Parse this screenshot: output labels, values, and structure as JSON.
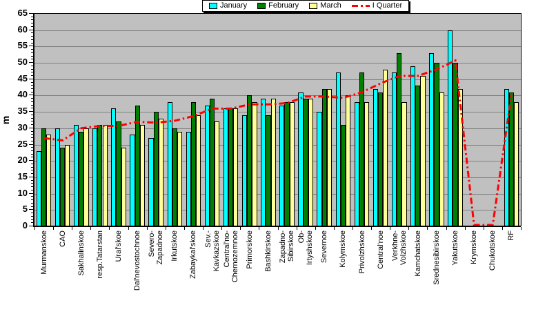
{
  "chart_data": {
    "type": "bar",
    "title": "",
    "ylabel": "m",
    "ylim": [
      0,
      65
    ],
    "ytick_step": 5,
    "yticks": [
      0,
      5,
      10,
      15,
      20,
      25,
      30,
      35,
      40,
      45,
      50,
      55,
      60,
      65
    ],
    "grid": true,
    "legend_position": "top-center",
    "plot_bg_color": "#C0C0C0",
    "grid_color": "#808080",
    "categories": [
      "Murmanskoe",
      "CAO",
      "Sakhalinskoe",
      "resp.Tatarstan",
      "Ural'skoe",
      "Dal'nevostochnoe",
      "Severo-\nZapadnoe",
      "Irkutskoe",
      "Zabaykal'skoe",
      "Sev.-\nKavkazskoe",
      "Central'no-\nChernozemnoe",
      "Primorskoe",
      "Bashkirskoe",
      "Zapadno-\nSibirskoe",
      "Ob-\nIrtyshskoe",
      "Severnoe",
      "Kolymskoe",
      "Privolzhskoe",
      "Central'noe",
      "Verkhne-\nVolzhskoe",
      "Kamchatskoe",
      "Srednesibirskoe",
      "Yakutskoe",
      "Krymskoe",
      "Chukotskoe",
      "RF"
    ],
    "series": [
      {
        "name": "January",
        "color": "#00FFFF",
        "values": [
          23,
          30,
          31,
          30,
          36,
          28,
          27,
          38,
          29,
          37,
          36,
          34,
          39,
          37,
          41,
          35,
          47,
          38,
          42,
          47,
          49,
          53,
          60,
          null,
          null,
          42
        ]
      },
      {
        "name": "February",
        "color": "#008000",
        "values": [
          30,
          24,
          29,
          31,
          32,
          37,
          35,
          30,
          38,
          39,
          36,
          40,
          34,
          38,
          39,
          42,
          31,
          47,
          41,
          53,
          43,
          50,
          50,
          null,
          null,
          41
        ]
      },
      {
        "name": "March",
        "color": "#FFFF99",
        "values": [
          28,
          25,
          30,
          31,
          24,
          31,
          33,
          29,
          34,
          32,
          36,
          38,
          39,
          38,
          39,
          42,
          40,
          38,
          48,
          38,
          46,
          41,
          42,
          null,
          null,
          38
        ]
      }
    ],
    "line_series": {
      "name": "I Quarter",
      "color": "#FF0000",
      "style": "dashed",
      "values": [
        27.0,
        26.3,
        30.0,
        30.7,
        30.7,
        32.0,
        31.7,
        32.3,
        33.7,
        36.0,
        36.0,
        37.3,
        37.3,
        37.7,
        39.7,
        39.7,
        39.3,
        41.0,
        43.7,
        46.0,
        46.0,
        48.0,
        50.7,
        0,
        0,
        40.3
      ]
    }
  }
}
